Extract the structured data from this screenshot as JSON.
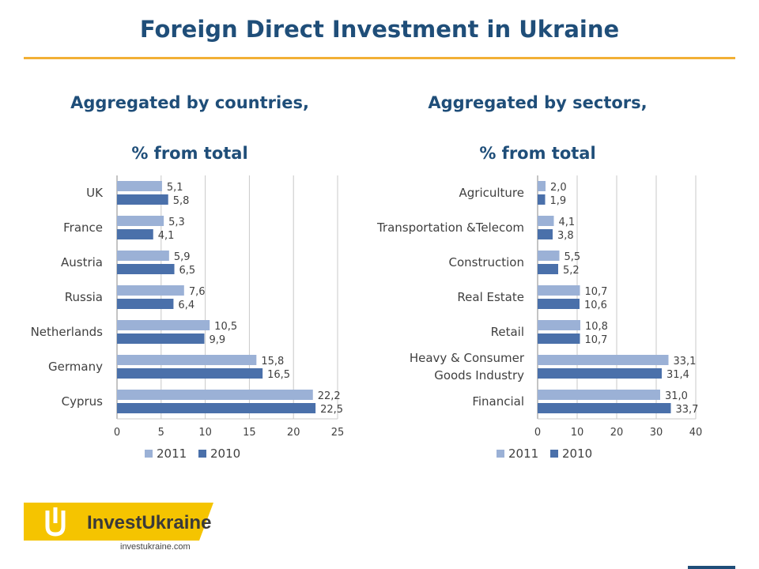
{
  "header": {
    "title": "Foreign Direct Investment in Ukraine"
  },
  "subtitles": {
    "countries": [
      "Aggregated by countries,",
      "% from total"
    ],
    "sectors": [
      "Aggregated by sectors,",
      "% from total"
    ]
  },
  "colors": {
    "s2011": "#9bb1d6",
    "s2010": "#4a70aa",
    "title": "#1f4e79",
    "rule": "#f2b035",
    "logo_yellow": "#f5c400"
  },
  "chart_data": [
    {
      "type": "bar",
      "orientation": "horizontal",
      "categories": [
        "UK",
        "France",
        "Austria",
        "Russia",
        "Netherlands",
        "Germany",
        "Cyprus"
      ],
      "series": [
        {
          "name": "2011",
          "values": [
            5.1,
            5.3,
            5.9,
            7.6,
            10.5,
            15.8,
            22.2
          ],
          "labels": [
            "5,1",
            "5,3",
            "5,9",
            "7,6",
            "10,5",
            "15,8",
            "22,2"
          ]
        },
        {
          "name": "2010",
          "values": [
            5.8,
            4.1,
            6.5,
            6.4,
            9.9,
            16.5,
            22.5
          ],
          "labels": [
            "5,8",
            "4,1",
            "6,5",
            "6,4",
            "9,9",
            "16,5",
            "22,5"
          ]
        }
      ],
      "xlim": [
        0,
        25
      ],
      "xticks": [
        "0",
        "5",
        "10",
        "15",
        "20",
        "25"
      ],
      "grid": true,
      "legend": "bottom"
    },
    {
      "type": "bar",
      "orientation": "horizontal",
      "categories": [
        "Agriculture",
        "Transportation &Telecom",
        "Construction",
        "Real Estate",
        "Retail",
        "Heavy & Consumer\nGoods Industry",
        "Financial"
      ],
      "series": [
        {
          "name": "2011",
          "values": [
            2.0,
            4.1,
            5.5,
            10.7,
            10.8,
            33.1,
            31.0
          ],
          "labels": [
            "2,0",
            "4,1",
            "5,5",
            "10,7",
            "10,8",
            "33,1",
            "31,0"
          ]
        },
        {
          "name": "2010",
          "values": [
            1.9,
            3.8,
            5.2,
            10.6,
            10.7,
            31.4,
            33.7
          ],
          "labels": [
            "1,9",
            "3,8",
            "5,2",
            "10,6",
            "10,7",
            "31,4",
            "33,7"
          ]
        }
      ],
      "xlim": [
        0,
        40
      ],
      "xticks": [
        "0",
        "10",
        "20",
        "30",
        "40"
      ],
      "grid": true,
      "legend": "bottom"
    }
  ],
  "logo": {
    "brand_part1": "Invest",
    "brand_part2": "Ukraine",
    "url": "investukraine.com"
  }
}
